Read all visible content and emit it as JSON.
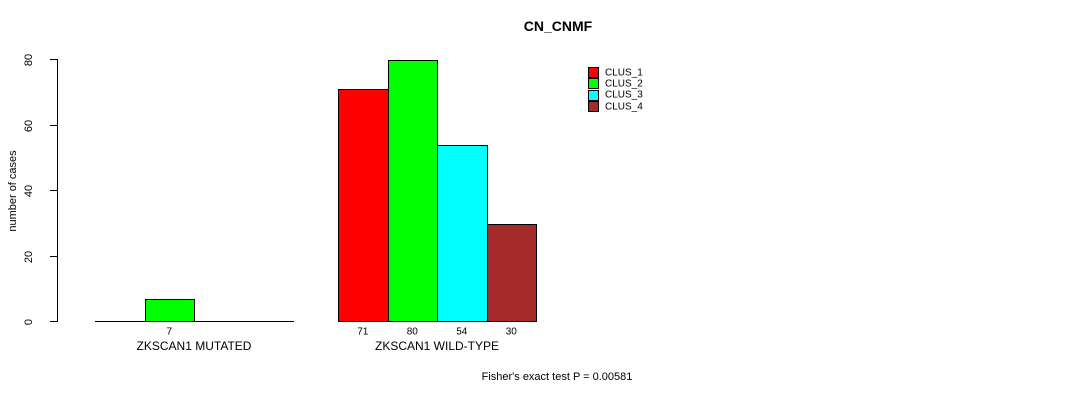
{
  "chart_data": {
    "type": "bar",
    "title": "CN_CNMF",
    "ylabel": "number of cases",
    "ylim": [
      0,
      80
    ],
    "yticks": [
      "0",
      "20",
      "40",
      "60",
      "80"
    ],
    "grid": false,
    "legend_position": "top-right",
    "categories": [
      "ZKSCAN1 MUTATED",
      "ZKSCAN1 WILD-TYPE"
    ],
    "series": [
      {
        "name": "CLUS_1",
        "color": "#FF0000",
        "values": [
          0,
          71
        ]
      },
      {
        "name": "CLUS_2",
        "color": "#00FF00",
        "values": [
          7,
          80
        ]
      },
      {
        "name": "CLUS_3",
        "color": "#00FFFF",
        "values": [
          0,
          54
        ]
      },
      {
        "name": "CLUS_4",
        "color": "#A52A2A",
        "values": [
          0,
          30
        ]
      }
    ],
    "bar_value_labels": [
      [
        "",
        "7",
        "",
        ""
      ],
      [
        "71",
        "80",
        "54",
        "30"
      ]
    ],
    "annotation": "Fisher's exact test P = 0.00581",
    "axis_color": "#000000",
    "background_color": "#FFFFFF"
  }
}
